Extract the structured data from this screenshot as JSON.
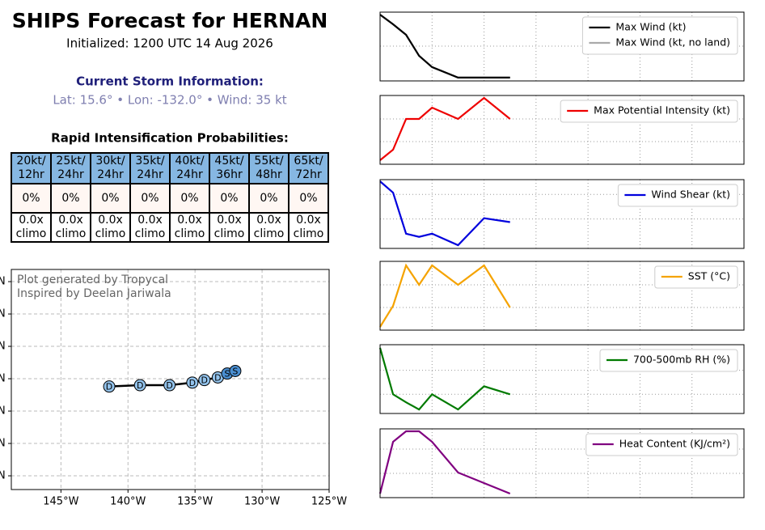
{
  "header": {
    "title": "SHIPS Forecast for HERNAN",
    "subtitle": "Initialized: 1200 UTC 14 Aug 2026",
    "storm_heading": "Current Storm Information:",
    "storm_info": "Lat: 15.6° • Lon: -132.0° • Wind: 35 kt",
    "ri_heading": "Rapid Intensification Probabilities:"
  },
  "table": {
    "rows": [
      [
        "20kt/ 12hr",
        "25kt/ 24hr",
        "30kt/ 24hr",
        "35kt/ 24hr",
        "40kt/ 24hr",
        "45kt/ 36hr",
        "55kt/ 48hr",
        "65kt/ 72hr"
      ],
      [
        "0%",
        "0%",
        "0%",
        "0%",
        "0%",
        "0%",
        "0%",
        "0%"
      ],
      [
        "0.0x climo",
        "0.0x climo",
        "0.0x climo",
        "0.0x climo",
        "0.0x climo",
        "0.0x climo",
        "0.0x climo",
        "0.0x climo"
      ]
    ]
  },
  "chart_data": [
    {
      "type": "track",
      "annotations": [
        "Plot generated by Tropycal",
        "Inspired by Deelan Jariwala"
      ],
      "x": [
        -132.0,
        -132.6,
        -133.3,
        -134.3,
        -135.2,
        -136.9,
        -139.1,
        -141.4
      ],
      "values": [
        15.6,
        15.4,
        15.1,
        14.9,
        14.7,
        14.5,
        14.5,
        14.4
      ],
      "labels": [
        "S",
        "S",
        "D",
        "D",
        "D",
        "D",
        "D",
        "D"
      ],
      "colors": [
        "#4a8fd2",
        "#4a8fd2",
        "#93c3ec",
        "#93c3ec",
        "#93c3ec",
        "#93c3ec",
        "#93c3ec",
        "#93c3ec"
      ],
      "line_color": "#000000",
      "xlim": [
        -148.7,
        -125
      ],
      "xticks": [
        {
          "value": -145,
          "label": "145°W"
        },
        {
          "value": -140,
          "label": "140°W"
        },
        {
          "value": -135,
          "label": "135°W"
        },
        {
          "value": -130,
          "label": "130°W"
        },
        {
          "value": -125,
          "label": "125°W"
        }
      ],
      "ylim": [
        6.44,
        23.44
      ],
      "yticks": [
        {
          "value": 22.5,
          "label": "N"
        },
        {
          "value": 20,
          "label": "N"
        },
        {
          "value": 17.5,
          "label": "N"
        },
        {
          "value": 15,
          "label": "N"
        },
        {
          "value": 12.5,
          "label": "N"
        },
        {
          "value": 10,
          "label": "N"
        },
        {
          "value": 7.5,
          "label": "N"
        }
      ],
      "grid": true
    },
    {
      "type": "line",
      "x": [
        0,
        6,
        12,
        18,
        24,
        36,
        48,
        60
      ],
      "xlim": [
        0,
        168
      ],
      "xticks": [
        24,
        48,
        72,
        96,
        120,
        144
      ],
      "ylim": [
        19.2,
        35.6
      ],
      "yticks": [
        27.5
      ],
      "grid": true,
      "legend": "upper right",
      "series": [
        {
          "name": "Max Wind (kt)",
          "color": "#000000",
          "values": [
            35,
            32.7,
            30.2,
            25.2,
            22.5,
            20,
            20,
            20
          ]
        },
        {
          "name": "Max Wind (kt, no land)",
          "color": "#aaaaaa",
          "values": [
            35,
            32.7,
            30.2,
            25.2,
            22.5,
            20,
            20,
            20
          ]
        }
      ]
    },
    {
      "type": "line",
      "x": [
        0,
        6,
        12,
        18,
        24,
        36,
        48,
        60
      ],
      "xlim": [
        0,
        168
      ],
      "xticks": [
        24,
        48,
        72,
        96,
        120,
        144
      ],
      "ylim": [
        97.5,
        140
      ],
      "yticks": [
        111.5,
        125.5
      ],
      "grid": true,
      "legend": "upper right",
      "series": [
        {
          "name": "Max Potential Intensity (kt)",
          "color": "#ee0000",
          "values": [
            100,
            106.5,
            125.5,
            125.5,
            132.5,
            125.5,
            138.5,
            125.5
          ]
        }
      ]
    },
    {
      "type": "line",
      "x": [
        0,
        6,
        12,
        18,
        24,
        36,
        48,
        60
      ],
      "xlim": [
        0,
        168
      ],
      "xticks": [
        24,
        48,
        72,
        96,
        120,
        144
      ],
      "ylim": [
        0,
        28
      ],
      "yticks": [
        12,
        22
      ],
      "grid": true,
      "legend": "upper right",
      "series": [
        {
          "name": "Wind Shear (kt)",
          "color": "#0000dd",
          "values": [
            27.3,
            22.7,
            6,
            4.7,
            6,
            1.3,
            12.3,
            10.7
          ]
        }
      ]
    },
    {
      "type": "line",
      "x": [
        0,
        6,
        12,
        18,
        24,
        36,
        48,
        60
      ],
      "xlim": [
        0,
        168
      ],
      "xticks": [
        24,
        48,
        72,
        96,
        120,
        144
      ],
      "ylim": [
        26,
        28.125
      ],
      "yticks": [
        26.7,
        27.4
      ],
      "grid": true,
      "legend": "upper right",
      "series": [
        {
          "name": "SST (°C)",
          "color": "#f5a300",
          "values": [
            26.1,
            26.75,
            28.0,
            27.4,
            28.0,
            27.4,
            28.0,
            26.7
          ]
        }
      ]
    },
    {
      "type": "line",
      "x": [
        0,
        6,
        12,
        18,
        24,
        36,
        48,
        60
      ],
      "xlim": [
        0,
        168
      ],
      "xticks": [
        24,
        48,
        72,
        96,
        120,
        144
      ],
      "ylim": [
        40,
        83
      ],
      "yticks": [
        52,
        67
      ],
      "grid": true,
      "legend": "upper right",
      "series": [
        {
          "name": "700-500mb RH (%)",
          "color": "#007a00",
          "values": [
            81,
            52,
            47,
            42.5,
            52,
            42.5,
            57,
            52
          ]
        }
      ]
    },
    {
      "type": "line",
      "x": [
        0,
        6,
        12,
        18,
        24,
        36,
        48,
        60
      ],
      "xlim": [
        0,
        168
      ],
      "xticks": [
        24,
        48,
        72,
        96,
        120,
        144
      ],
      "ylim": [
        0,
        85
      ],
      "yticks": [
        30,
        60
      ],
      "grid": true,
      "legend": "upper right",
      "series": [
        {
          "name": "Heat Content (KJ/cm²)",
          "color": "#800080",
          "values": [
            5,
            69,
            82,
            82,
            69,
            31,
            18,
            5
          ]
        }
      ]
    }
  ]
}
